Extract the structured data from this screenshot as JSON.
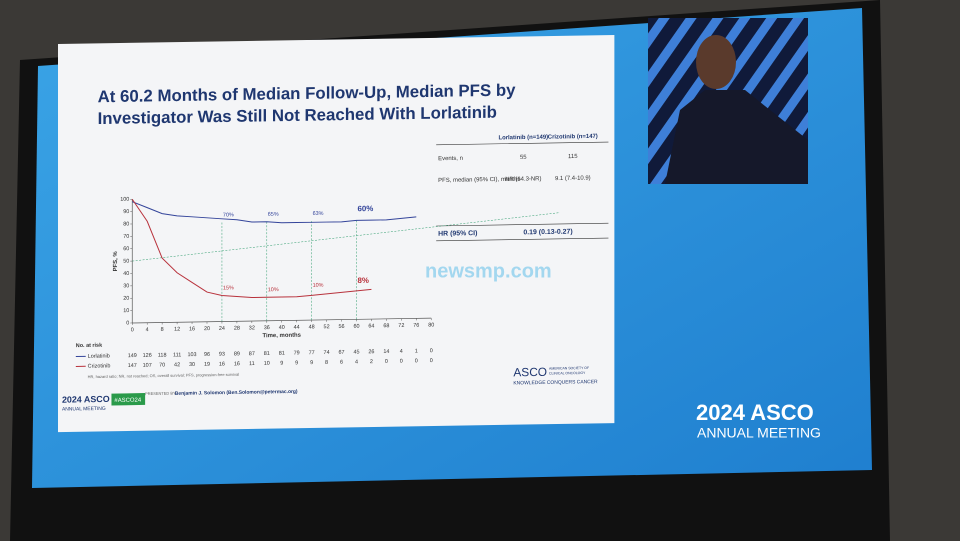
{
  "chart_data": {
    "type": "line",
    "title": [
      "At 60.2 Months of Median Follow-Up, Median PFS by",
      "Investigator Was Still Not Reached With Lorlatinib"
    ],
    "x_label": "Time, months",
    "y_label": "PFS, %",
    "x": [
      0,
      4,
      8,
      12,
      16,
      20,
      24,
      28,
      32,
      36,
      40,
      44,
      48,
      52,
      56,
      60,
      64,
      68,
      72,
      76,
      80
    ],
    "series": [
      {
        "name": "Lorlatinib",
        "color": "#33449a",
        "values": [
          98,
          93,
          88,
          86,
          85,
          84,
          83,
          82,
          80,
          80,
          79,
          79,
          79,
          79,
          79,
          80,
          80,
          80,
          81,
          82,
          null
        ]
      },
      {
        "name": "Crizotinib",
        "color": "#b8323c",
        "values": [
          100,
          82,
          52,
          40,
          32,
          24,
          21,
          20,
          19,
          19,
          19,
          19,
          20,
          21,
          22,
          23,
          24,
          null,
          null,
          null,
          null
        ]
      }
    ],
    "xlim": [
      0,
      80
    ],
    "xticks": [
      0,
      4,
      8,
      12,
      16,
      20,
      24,
      28,
      32,
      36,
      40,
      44,
      48,
      52,
      56,
      60,
      64,
      68,
      72,
      76,
      80
    ],
    "ylim": [
      0,
      100
    ],
    "yticks": [
      0,
      10,
      20,
      30,
      40,
      50,
      60,
      70,
      80,
      90,
      100
    ],
    "annotations": [
      "70%",
      "65%",
      "63%",
      "60%",
      "15%",
      "10%",
      "10%",
      "8%"
    ],
    "at_risk": {
      "title": "No. at risk",
      "rows": [
        {
          "name": "Lorlatinib",
          "values": [
            149,
            126,
            118,
            111,
            103,
            96,
            93,
            89,
            87,
            81,
            81,
            79,
            77,
            74,
            67,
            45,
            26,
            14,
            4,
            1,
            0
          ]
        },
        {
          "name": "Crizotinib",
          "values": [
            147,
            107,
            70,
            42,
            30,
            19,
            16,
            16,
            11,
            10,
            9,
            9,
            9,
            8,
            6,
            4,
            2,
            0,
            0,
            0,
            0
          ]
        }
      ]
    }
  },
  "table": {
    "header": [
      "Lorlatinib (n=149)",
      "Crizotinib (n=147)"
    ],
    "rows": [
      [
        "Events, n",
        "55",
        "115"
      ],
      [
        "PFS, median (95% CI), months",
        "NR (64.3-NR)",
        "9.1 (7.4-10.9)"
      ]
    ],
    "hr": [
      "HR (95% CI)",
      "0.19 (0.13-0.27)"
    ]
  },
  "footnote": "HR, hazard ratio; NR, not reached; OS, overall survival; PFS, progression-free survival",
  "presenter": "Benjamin J. Solomon (Ben.Solomon@petermac.org)",
  "presented_by": "PRESENTED BY:",
  "asco_logo": {
    "name": "ASCO",
    "line1": "AMERICAN SOCIETY OF",
    "line2": "CLINICAL ONCOLOGY",
    "tagline": "KNOWLEDGE CONQUERS CANCER"
  },
  "slide_meeting": {
    "brand": "2024 ASCO",
    "sub": "ANNUAL MEETING",
    "hashtag": "#ASCO24"
  },
  "screen_meeting": {
    "brand": "2024 ASCO",
    "sub": "ANNUAL MEETING"
  },
  "watermark": "newsmp.com"
}
